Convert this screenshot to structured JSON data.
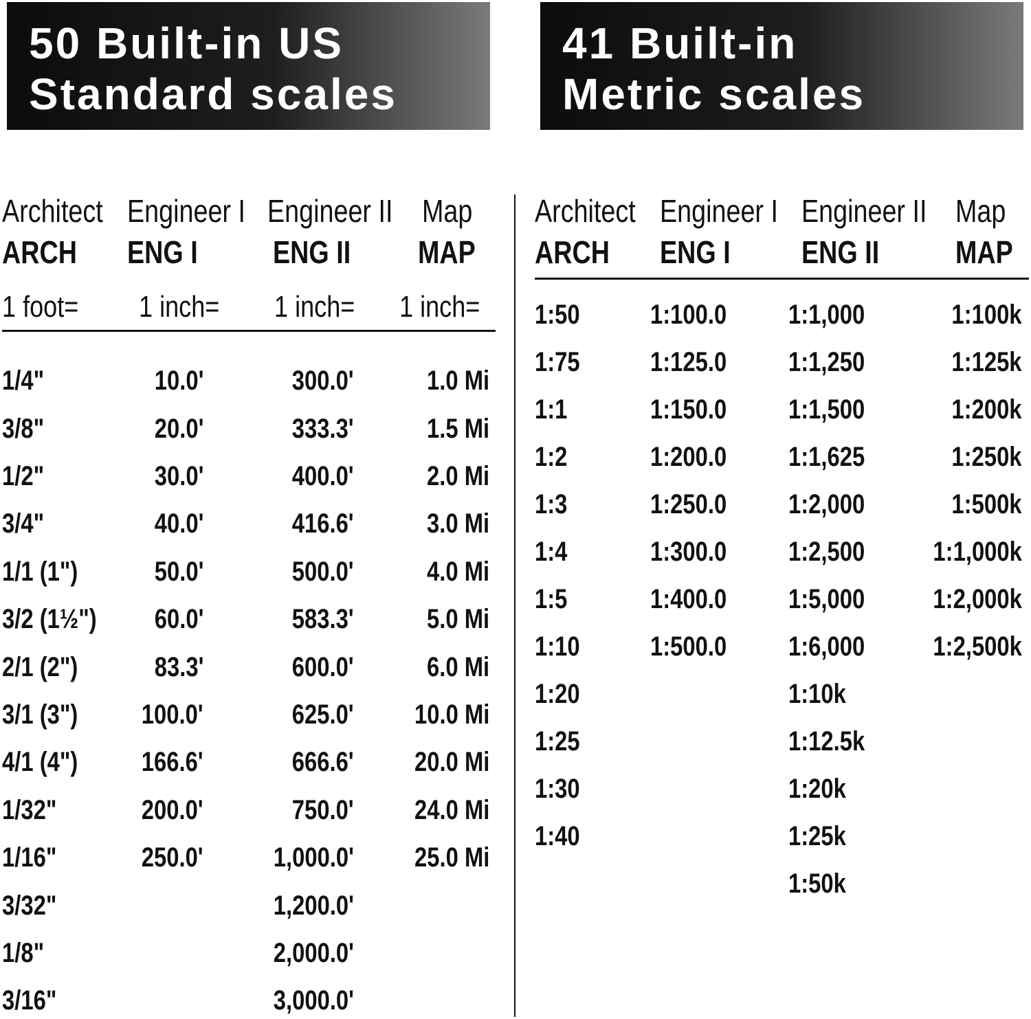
{
  "us": {
    "title_lines": [
      "50 Built-in US",
      "Standard scales"
    ],
    "columns": [
      {
        "name": "Architect",
        "code": "ARCH",
        "unit": "1 foot=",
        "values": [
          "1/4\"",
          "3/8\"",
          "1/2\"",
          "3/4\"",
          "1/1 (1\")",
          "3/2 (1½\")",
          "2/1 (2\")",
          "3/1 (3\")",
          "4/1 (4\")",
          "1/32\"",
          "1/16\"",
          "3/32\"",
          "1/8\"",
          "3/16\""
        ]
      },
      {
        "name": "Engineer I",
        "code": "ENG I",
        "unit": "1 inch=",
        "values": [
          "10.0'",
          "20.0'",
          "30.0'",
          "40.0'",
          "50.0'",
          "60.0'",
          "83.3'",
          "100.0'",
          "166.6'",
          "200.0'",
          "250.0'"
        ]
      },
      {
        "name": "Engineer II",
        "code": "ENG II",
        "unit": "1 inch=",
        "values": [
          "300.0'",
          "333.3'",
          "400.0'",
          "416.6'",
          "500.0'",
          "583.3'",
          "600.0'",
          "625.0'",
          "666.6'",
          "750.0'",
          "1,000.0'",
          "1,200.0'",
          "2,000.0'",
          "3,000.0'"
        ]
      },
      {
        "name": "Map",
        "code": "MAP",
        "unit": "1 inch=",
        "values": [
          "1.0 Mi",
          "1.5 Mi",
          "2.0 Mi",
          "3.0 Mi",
          "4.0 Mi",
          "5.0 Mi",
          "6.0 Mi",
          "10.0 Mi",
          "20.0 Mi",
          "24.0 Mi",
          "25.0 Mi"
        ]
      }
    ]
  },
  "metric": {
    "title_lines": [
      "41 Built-in",
      "Metric scales"
    ],
    "columns": [
      {
        "name": "Architect",
        "code": "ARCH",
        "values": [
          "1:50",
          "1:75",
          "1:1",
          "1:2",
          "1:3",
          "1:4",
          "1:5",
          "1:10",
          "1:20",
          "1:25",
          "1:30",
          "1:40"
        ]
      },
      {
        "name": "Engineer I",
        "code": "ENG I",
        "values": [
          "1:100.0",
          "1:125.0",
          "1:150.0",
          "1:200.0",
          "1:250.0",
          "1:300.0",
          "1:400.0",
          "1:500.0"
        ]
      },
      {
        "name": "Engineer II",
        "code": "ENG II",
        "values": [
          "1:1,000",
          "1:1,250",
          "1:1,500",
          "1:1,625",
          "1:2,000",
          "1:2,500",
          "1:5,000",
          "1:6,000",
          "1:10k",
          "1:12.5k",
          "1:20k",
          "1:25k",
          "1:50k"
        ]
      },
      {
        "name": "Map",
        "code": "MAP",
        "values": [
          "1:100k",
          "1:125k",
          "1:200k",
          "1:250k",
          "1:500k",
          "1:1,000k",
          "1:2,000k",
          "1:2,500k"
        ]
      }
    ]
  }
}
